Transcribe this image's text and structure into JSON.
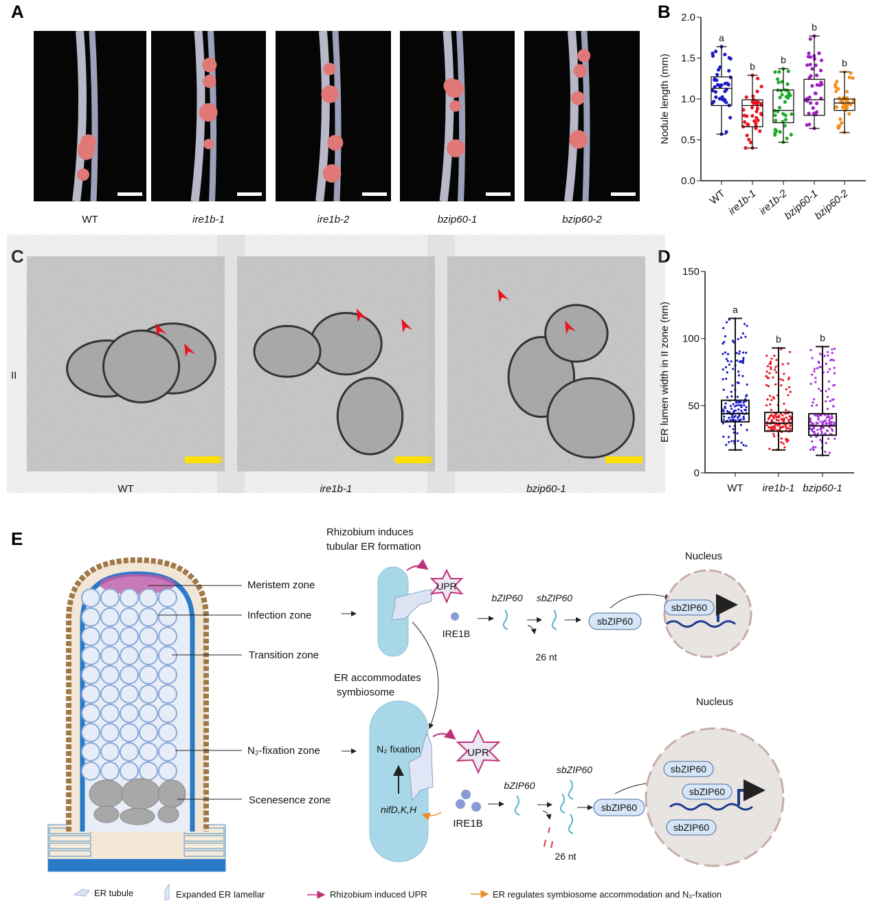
{
  "panels": {
    "a": "A",
    "b": "B",
    "c": "C",
    "d": "D",
    "e": "E"
  },
  "panel_a": {
    "genotypes": [
      "WT",
      "ire1b-1",
      "ire1b-2",
      "bzip60-1",
      "bzip60-2"
    ]
  },
  "panel_c": {
    "row_label": "II",
    "genotypes": [
      "WT",
      "ire1b-1",
      "bzip60-1"
    ]
  },
  "chart_data": [
    {
      "type": "box",
      "panel": "B",
      "ylabel": "Nodule length (mm)",
      "ylim": [
        0,
        2.0
      ],
      "yticks": [
        "0.0",
        "0.5",
        "1.0",
        "1.5",
        "2.0"
      ],
      "categories": [
        "WT",
        "ire1b-1",
        "ire1b-2",
        "bzip60-1",
        "bzip60-2"
      ],
      "colors": [
        "#1a1ac8",
        "#e8141e",
        "#1eaa28",
        "#9b1fc0",
        "#f0901e"
      ],
      "boxes": [
        {
          "min": 0.57,
          "q1": 0.92,
          "median": 1.13,
          "q3": 1.27,
          "max": 1.64
        },
        {
          "min": 0.4,
          "q1": 0.66,
          "median": 0.92,
          "q3": 0.99,
          "max": 1.29
        },
        {
          "min": 0.47,
          "q1": 0.71,
          "median": 0.86,
          "q3": 1.11,
          "max": 1.37
        },
        {
          "min": 0.64,
          "q1": 0.8,
          "median": 0.99,
          "q3": 1.24,
          "max": 1.77
        },
        {
          "min": 0.59,
          "q1": 0.86,
          "median": 0.95,
          "q3": 1.0,
          "max": 1.33
        }
      ],
      "significance": [
        "a",
        "b",
        "b",
        "b",
        "b"
      ]
    },
    {
      "type": "box",
      "panel": "D",
      "ylabel": "ER lumen width in II zone (nm)",
      "ylim": [
        0,
        150
      ],
      "yticks": [
        "0",
        "50",
        "100",
        "150"
      ],
      "categories": [
        "WT",
        "ire1b-1",
        "bzip60-1"
      ],
      "colors": [
        "#1a1ac8",
        "#e8141e",
        "#a431d8"
      ],
      "boxes": [
        {
          "min": 17,
          "q1": 38,
          "median": 44,
          "q3": 54,
          "max": 115
        },
        {
          "min": 17,
          "q1": 31,
          "median": 37,
          "q3": 45,
          "max": 93
        },
        {
          "min": 13,
          "q1": 28,
          "median": 35,
          "q3": 44,
          "max": 94
        }
      ],
      "significance": [
        "a",
        "b",
        "b"
      ]
    }
  ],
  "panel_e": {
    "zones": [
      "Meristem zone",
      "Infection zone",
      "Transition zone",
      "N₂-fixation zone",
      "Scenesence zone"
    ],
    "top_title_1": "Rhizobium induces",
    "top_title_2": "tubular ER formation",
    "mid_title_1": "ER accommodates",
    "mid_title_2": "symbiosome",
    "upr": "UPR",
    "ire1b": "IRE1B",
    "bzip60": "bZIP60",
    "sbzip60": "sbZIP60",
    "nt": "26 nt",
    "protein": "sbZIP60",
    "nucleus": "Nucleus",
    "n2_fixation": "N₂ fixation",
    "nif_genes": "nifD,K,H",
    "colors": {
      "er": "#a8d8e8",
      "upr": "#c0307a",
      "orange": "#e8902c",
      "dna": "#1a3a8c"
    }
  },
  "legend": [
    {
      "label": "ER tubule"
    },
    {
      "label": "Expanded  ER lamellar"
    },
    {
      "label": "Rhizobium induced UPR"
    },
    {
      "label": "ER regulates symbiosome accommodation and N₂-fxation"
    }
  ]
}
